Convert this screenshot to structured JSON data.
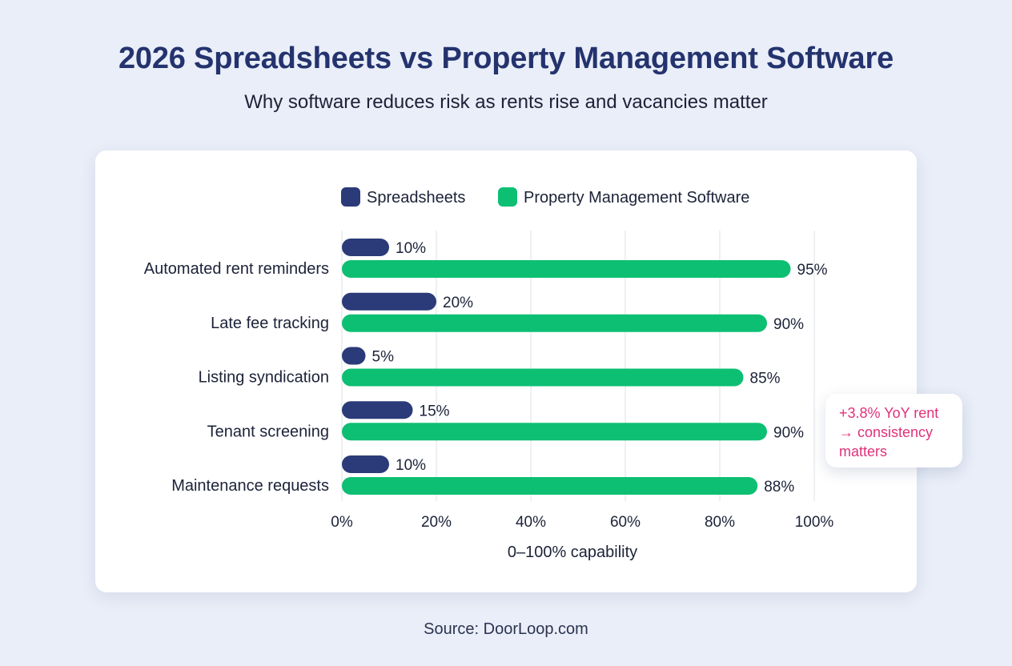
{
  "title": "2026 Spreadsheets vs Property Management Software",
  "subtitle": "Why software reduces risk as rents rise and vacancies matter",
  "annotation": {
    "lines": [
      "+3.8% YoY rent",
      "→ consistency",
      "matters"
    ],
    "color": "#e0317a"
  },
  "source": "Source: DoorLoop.com",
  "colors": {
    "spreadsheets": "#2b3a78",
    "software": "#0dbf72",
    "title": "#24336e"
  },
  "chart_data": {
    "type": "bar",
    "orientation": "horizontal",
    "categories": [
      "Automated rent reminders",
      "Late fee tracking",
      "Listing syndication",
      "Tenant screening",
      "Maintenance requests"
    ],
    "series": [
      {
        "name": "Spreadsheets",
        "values": [
          10,
          20,
          5,
          15,
          10
        ],
        "color": "#2b3a78"
      },
      {
        "name": "Property Management Software",
        "values": [
          95,
          90,
          85,
          90,
          88
        ],
        "color": "#0dbf72"
      }
    ],
    "xlabel": "0–100% capability",
    "xlim": [
      0,
      100
    ],
    "xticks": [
      0,
      20,
      40,
      60,
      80,
      100
    ],
    "tick_suffix": "%",
    "value_suffix": "%",
    "grid": true,
    "legend_position": "top"
  }
}
